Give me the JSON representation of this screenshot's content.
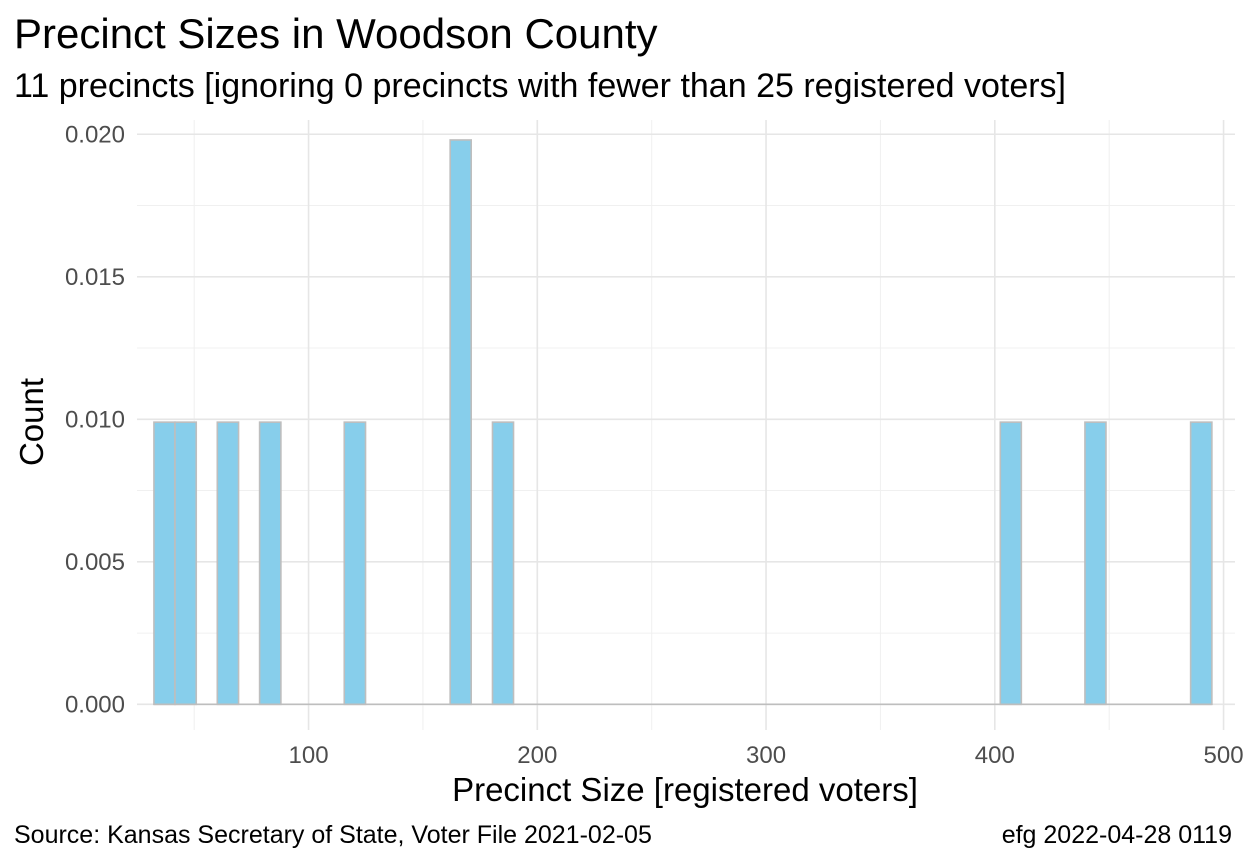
{
  "chart_data": {
    "type": "bar",
    "title": "Precinct Sizes in Woodson County",
    "subtitle": "11 precincts [ignoring 0 precincts with fewer than 25 registered voters]",
    "xlabel": "Precinct Size [registered voters]",
    "ylabel": "Count",
    "xlim": [
      25,
      505
    ],
    "ylim": [
      -0.0009,
      0.0205
    ],
    "x_ticks": [
      100,
      200,
      300,
      400,
      500
    ],
    "y_ticks": [
      0.0,
      0.005,
      0.01,
      0.015,
      0.02
    ],
    "x_tick_labels": [
      "100",
      "200",
      "300",
      "400",
      "500"
    ],
    "y_tick_labels": [
      "0.000",
      "0.005",
      "0.010",
      "0.015",
      "0.020"
    ],
    "grid": true,
    "bin_width": 9.25,
    "bins": [
      {
        "x0": 32.4,
        "x1": 41.6,
        "value": 0.0099
      },
      {
        "x0": 41.6,
        "x1": 50.9,
        "value": 0.0099
      },
      {
        "x0": 60.1,
        "x1": 69.4,
        "value": 0.0099
      },
      {
        "x0": 78.6,
        "x1": 87.9,
        "value": 0.0099
      },
      {
        "x0": 115.6,
        "x1": 124.9,
        "value": 0.0099
      },
      {
        "x0": 161.9,
        "x1": 171.1,
        "value": 0.0198
      },
      {
        "x0": 180.4,
        "x1": 189.6,
        "value": 0.0099
      },
      {
        "x0": 402.4,
        "x1": 411.6,
        "value": 0.0099
      },
      {
        "x0": 439.4,
        "x1": 448.6,
        "value": 0.0099
      },
      {
        "x0": 485.6,
        "x1": 494.9,
        "value": 0.0099
      }
    ],
    "bar_color": "#87ceeb",
    "bar_outline_color": "#bebebe"
  },
  "caption": {
    "source": "Source:  Kansas Secretary of State, Voter File  2021-02-05",
    "stamp": "efg 2022-04-28 0119"
  }
}
